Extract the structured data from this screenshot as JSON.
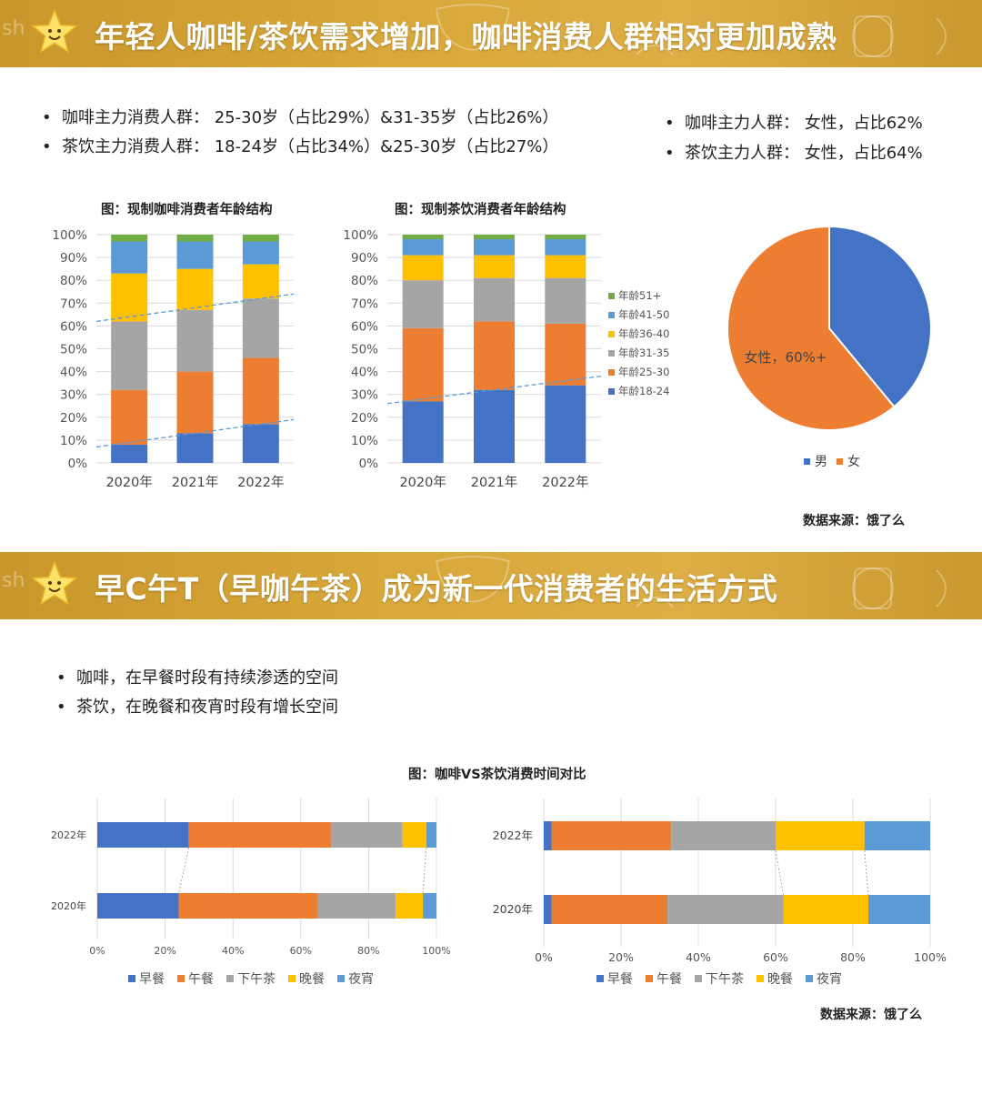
{
  "section1": {
    "title": "年轻人咖啡/茶饮需求增加，咖啡消费人群相对更加成熟",
    "bullets_left": [
      "咖啡主力消费人群：  25-30岁（占比29%）&31-35岁（占比26%）",
      "茶饮主力消费人群：  18-24岁（占比34%）&25-30岁（占比27%）"
    ],
    "bullets_right": [
      "咖啡主力人群：  女性，占比62%",
      "茶饮主力人群：  女性，占比64%"
    ],
    "source": "数据来源：饿了么"
  },
  "section2": {
    "title": "早C午T（早咖午茶）成为新一代消费者的生活方式",
    "bullets": [
      "咖啡，在早餐时段有持续渗透的空间",
      "茶饮，在晚餐和夜宵时段有增长空间"
    ],
    "source": "数据来源：饿了么"
  },
  "colors": {
    "banner": "#d4a33a",
    "blue": "#4472c4",
    "orange": "#ed7d31",
    "gray": "#a5a5a5",
    "yellow": "#ffc000",
    "lightblue": "#5b9bd5",
    "green": "#70ad47",
    "trend": "#5b9bd5"
  },
  "chart_data": [
    {
      "id": "coffee-age",
      "type": "bar",
      "stacked": true,
      "title": "图：现制咖啡消费者年龄结构",
      "categories": [
        "2020年",
        "2021年",
        "2022年"
      ],
      "y_ticks": [
        "0%",
        "10%",
        "20%",
        "30%",
        "40%",
        "50%",
        "60%",
        "70%",
        "80%",
        "90%",
        "100%"
      ],
      "ylim": [
        0,
        100
      ],
      "series": [
        {
          "name": "年龄18-24",
          "color": "#4472c4",
          "values": [
            8,
            13,
            17
          ]
        },
        {
          "name": "年龄25-30",
          "color": "#ed7d31",
          "values": [
            24,
            27,
            29
          ]
        },
        {
          "name": "年龄31-35",
          "color": "#a5a5a5",
          "values": [
            30,
            27,
            26
          ]
        },
        {
          "name": "年龄36-40",
          "color": "#ffc000",
          "values": [
            21,
            18,
            15
          ]
        },
        {
          "name": "年龄41-50",
          "color": "#5b9bd5",
          "values": [
            14,
            12,
            10
          ]
        },
        {
          "name": "年龄51+",
          "color": "#70ad47",
          "values": [
            3,
            3,
            3
          ]
        }
      ],
      "trend_lines": [
        {
          "from": [
            0.5,
            62
          ],
          "to": [
            3.5,
            74
          ]
        },
        {
          "from": [
            0.5,
            7
          ],
          "to": [
            3.5,
            19
          ]
        }
      ]
    },
    {
      "id": "tea-age",
      "type": "bar",
      "stacked": true,
      "title": "图：现制茶饮消费者年龄结构",
      "categories": [
        "2020年",
        "2021年",
        "2022年"
      ],
      "y_ticks": [
        "0%",
        "10%",
        "20%",
        "30%",
        "40%",
        "50%",
        "60%",
        "70%",
        "80%",
        "90%",
        "100%"
      ],
      "ylim": [
        0,
        100
      ],
      "legend": [
        "年龄51+",
        "年龄41-50",
        "年龄36-40",
        "年龄31-35",
        "年龄25-30",
        "年龄18-24"
      ],
      "series": [
        {
          "name": "年龄18-24",
          "color": "#4472c4",
          "values": [
            27,
            32,
            34
          ]
        },
        {
          "name": "年龄25-30",
          "color": "#ed7d31",
          "values": [
            32,
            30,
            27
          ]
        },
        {
          "name": "年龄31-35",
          "color": "#a5a5a5",
          "values": [
            21,
            19,
            20
          ]
        },
        {
          "name": "年龄36-40",
          "color": "#ffc000",
          "values": [
            11,
            10,
            10
          ]
        },
        {
          "name": "年龄41-50",
          "color": "#5b9bd5",
          "values": [
            7,
            7,
            7
          ]
        },
        {
          "name": "年龄51+",
          "color": "#70ad47",
          "values": [
            2,
            2,
            2
          ]
        }
      ],
      "trend_lines": [
        {
          "from": [
            0.5,
            26
          ],
          "to": [
            3.5,
            38
          ]
        }
      ]
    },
    {
      "id": "gender-pie",
      "type": "pie",
      "slices": [
        {
          "name": "男",
          "color": "#4472c4",
          "value": 39
        },
        {
          "name": "女",
          "color": "#ed7d31",
          "value": 61
        }
      ],
      "annotation": "女性，60%+",
      "legend": [
        "男",
        "女"
      ]
    },
    {
      "id": "coffee-time",
      "type": "bar",
      "orientation": "horizontal",
      "stacked": true,
      "title": "图：咖啡VS茶饮消费时间对比",
      "categories": [
        "2022年",
        "2020年"
      ],
      "x_ticks": [
        "0%",
        "20%",
        "40%",
        "60%",
        "80%",
        "100%"
      ],
      "xlim": [
        0,
        100
      ],
      "series": [
        {
          "name": "早餐",
          "color": "#4472c4",
          "values": [
            27,
            24
          ]
        },
        {
          "name": "午餐",
          "color": "#ed7d31",
          "values": [
            42,
            41
          ]
        },
        {
          "name": "下午茶",
          "color": "#a5a5a5",
          "values": [
            21,
            23
          ]
        },
        {
          "name": "晚餐",
          "color": "#ffc000",
          "values": [
            7,
            8
          ]
        },
        {
          "name": "夜宵",
          "color": "#5b9bd5",
          "values": [
            3,
            4
          ]
        }
      ]
    },
    {
      "id": "tea-time",
      "type": "bar",
      "orientation": "horizontal",
      "stacked": true,
      "categories": [
        "2022年",
        "2020年"
      ],
      "x_ticks": [
        "0%",
        "20%",
        "40%",
        "60%",
        "80%",
        "100%"
      ],
      "xlim": [
        0,
        100
      ],
      "series": [
        {
          "name": "早餐",
          "color": "#4472c4",
          "values": [
            2,
            2
          ]
        },
        {
          "name": "午餐",
          "color": "#ed7d31",
          "values": [
            31,
            30
          ]
        },
        {
          "name": "下午茶",
          "color": "#a5a5a5",
          "values": [
            27,
            30
          ]
        },
        {
          "name": "晚餐",
          "color": "#ffc000",
          "values": [
            23,
            22
          ]
        },
        {
          "name": "夜宵",
          "color": "#5b9bd5",
          "values": [
            17,
            16
          ]
        }
      ]
    }
  ]
}
